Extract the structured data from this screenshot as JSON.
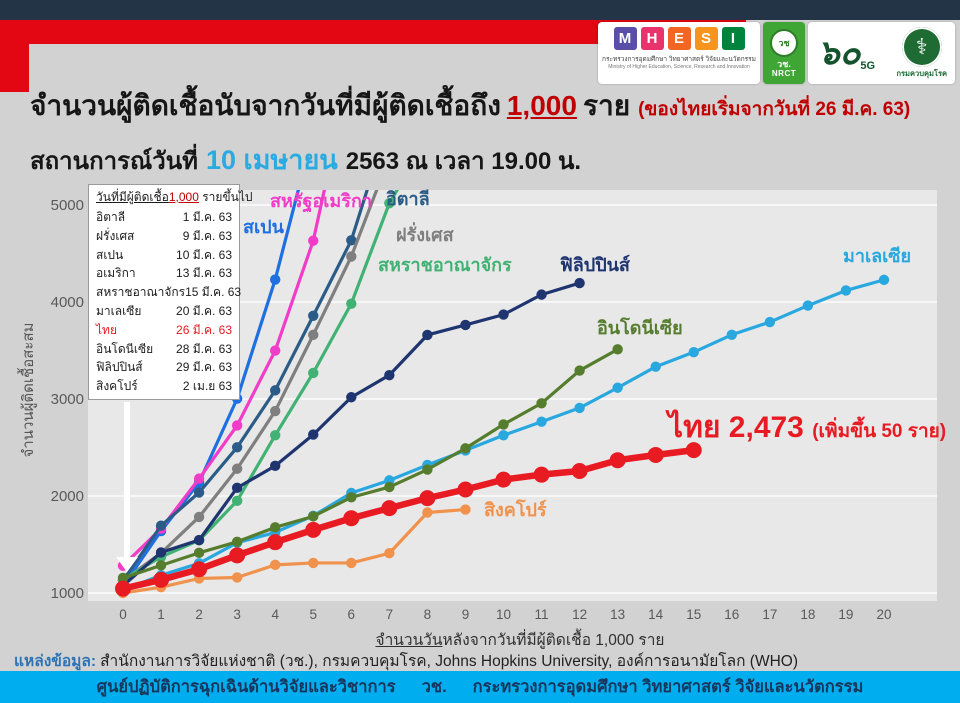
{
  "colors": {
    "header_navy": "#243447",
    "accent_red": "#E30613",
    "footer_cyan": "#00AEEF",
    "date_blue": "#29ABE2",
    "title_number_red": "#C00000",
    "thai_red": "#E81B23",
    "source_label_blue": "#2E74B5"
  },
  "logos": {
    "mhesi": {
      "letters": [
        {
          "ch": "M",
          "color": "#5B4EA8"
        },
        {
          "ch": "H",
          "color": "#E8336D"
        },
        {
          "ch": "E",
          "color": "#F26522"
        },
        {
          "ch": "S",
          "color": "#F7941E"
        },
        {
          "ch": "I",
          "color": "#00843D"
        }
      ],
      "thai": "กระทรวงการอุดมศึกษา วิทยาศาสตร์ วิจัยและนวัตกรรม",
      "eng": "Ministry of Higher Education, Science, Research and Innovation"
    },
    "nrct": {
      "emblem": "วช",
      "line1": "วช.",
      "line2": "NRCT"
    },
    "sixty": {
      "numeral": "๖๐",
      "tag": "5G"
    },
    "moph": {
      "seal_glyph": "⚕",
      "label": "กรมควบคุมโรค"
    }
  },
  "header": {
    "title_pre": "จำนวนผู้ติดเชื้อนับจากวันที่มีผู้ติดเชื้อถึง",
    "title_num": "1,000",
    "title_post": "ราย",
    "title_note": "(ของไทยเริ่มจากวันที่ 26 มี.ค. 63)",
    "subtitle_pre": "สถานการณ์วันที่",
    "subtitle_date": "10 เมษายน",
    "subtitle_post": "2563 ณ เวลา 19.00 น."
  },
  "legend_table": {
    "header_underlined": "วันที่มีผู้ติดเชื้อ",
    "header_number": "1,000",
    "header_suffix": " รายขึ้นไป",
    "rows": [
      {
        "country": "อิตาลี",
        "date": "1 มี.ค. 63",
        "highlight": false
      },
      {
        "country": "ฝรั่งเศส",
        "date": "9 มี.ค. 63",
        "highlight": false
      },
      {
        "country": "สเปน",
        "date": "10 มี.ค. 63",
        "highlight": false
      },
      {
        "country": "อเมริกา",
        "date": "13 มี.ค. 63",
        "highlight": false
      },
      {
        "country": "สหราชอาณาจักร",
        "date": "15 มี.ค. 63",
        "highlight": false
      },
      {
        "country": "มาเลเซีย",
        "date": "20 มี.ค. 63",
        "highlight": false
      },
      {
        "country": "ไทย",
        "date": "26 มี.ค. 63",
        "highlight": true
      },
      {
        "country": "อินโดนีเซีย",
        "date": "28 มี.ค. 63",
        "highlight": false
      },
      {
        "country": "ฟิลิปปินส์",
        "date": "29 มี.ค. 63",
        "highlight": false
      },
      {
        "country": "สิงคโปร์",
        "date": "2 เม.ย 63",
        "highlight": false
      }
    ]
  },
  "chart_data": {
    "type": "line",
    "xlabel_underlined": "จำนวนวัน",
    "xlabel_rest": "หลังจากวันที่มีผู้ติดเชื้อ 1,000 ราย",
    "ylabel": "จำนวนผู้ติดเชื้อสะสม",
    "xlim": [
      0,
      20
    ],
    "ylim": [
      1000,
      5150
    ],
    "xticks": [
      0,
      1,
      2,
      3,
      4,
      5,
      6,
      7,
      8,
      9,
      10,
      11,
      12,
      13,
      14,
      15,
      16,
      17,
      18,
      19,
      20
    ],
    "yticks": [
      1000,
      2000,
      3000,
      4000,
      5000
    ],
    "grid": true,
    "series": [
      {
        "name": "สเปน",
        "name_en": "Spain",
        "color": "#1E6FE0",
        "emphasis": false,
        "values": [
          1073,
          1639,
          2140,
          3004,
          4231,
          5753
        ]
      },
      {
        "name": "สหรัฐอเมริกา",
        "name_en": "United States",
        "color": "#F03CC8",
        "emphasis": false,
        "values": [
          1281,
          1663,
          2179,
          2727,
          3499,
          4632,
          6421
        ]
      },
      {
        "name": "อิตาลี",
        "name_en": "Italy",
        "color": "#2B5C87",
        "emphasis": false,
        "values": [
          1128,
          1694,
          2036,
          2502,
          3089,
          3858,
          4636,
          5883
        ]
      },
      {
        "name": "ฝรั่งเศส",
        "name_en": "France",
        "color": "#7F7F7F",
        "emphasis": false,
        "values": [
          1126,
          1412,
          1784,
          2281,
          2876,
          3661,
          4469,
          5497
        ]
      },
      {
        "name": "สหราชอาณาจักร",
        "name_en": "United Kingdom",
        "color": "#41B273",
        "emphasis": false,
        "values": [
          1140,
          1372,
          1543,
          1950,
          2626,
          3269,
          3983,
          5018,
          5683
        ]
      },
      {
        "name": "ฟิลิปปินส์",
        "name_en": "Philippines",
        "color": "#1F3570",
        "emphasis": false,
        "values": [
          1075,
          1418,
          1546,
          2084,
          2311,
          2633,
          3018,
          3246,
          3660,
          3764,
          3870,
          4076,
          4195
        ]
      },
      {
        "name": "มาเลเซีย",
        "name_en": "Malaysia",
        "color": "#29A8E0",
        "emphasis": false,
        "values": [
          1030,
          1183,
          1306,
          1518,
          1624,
          1796,
          2031,
          2161,
          2320,
          2470,
          2626,
          2766,
          2908,
          3116,
          3333,
          3483,
          3662,
          3793,
          3963,
          4119,
          4228
        ]
      },
      {
        "name": "อินโดนีเซีย",
        "name_en": "Indonesia",
        "color": "#567D2E",
        "emphasis": false,
        "values": [
          1155,
          1285,
          1414,
          1528,
          1677,
          1790,
          1986,
          2092,
          2273,
          2491,
          2738,
          2956,
          3293,
          3512
        ]
      },
      {
        "name": "สิงคโปร์",
        "name_en": "Singapore",
        "color": "#F0924C",
        "emphasis": false,
        "values": [
          1000,
          1060,
          1150,
          1160,
          1290,
          1310,
          1310,
          1410,
          1830,
          1860
        ]
      },
      {
        "name": "ไทย",
        "name_en": "Thailand",
        "color": "#E81B23",
        "emphasis": true,
        "values": [
          1045,
          1136,
          1245,
          1388,
          1524,
          1651,
          1771,
          1875,
          1978,
          2067,
          2169,
          2220,
          2258,
          2369,
          2423,
          2473
        ]
      }
    ]
  },
  "thai_annotation": {
    "name": "ไทย",
    "value": "2,473",
    "note": "(เพิ่มขึ้น 50 ราย)"
  },
  "source": {
    "label": "แหล่งข้อมูล:",
    "text": "สำนักงานการวิจัยแห่งชาติ (วช.), กรมควบคุมโรค, Johns Hopkins University, องค์การอนามัยโลก (WHO)"
  },
  "footer": {
    "part1": "ศูนย์ปฏิบัติการฉุกเฉินด้านวิจัยและวิชาการ",
    "part2": "วช.",
    "part3": "กระทรวงการอุดมศึกษา วิทยาศาสตร์ วิจัยและนวัตกรรม"
  }
}
